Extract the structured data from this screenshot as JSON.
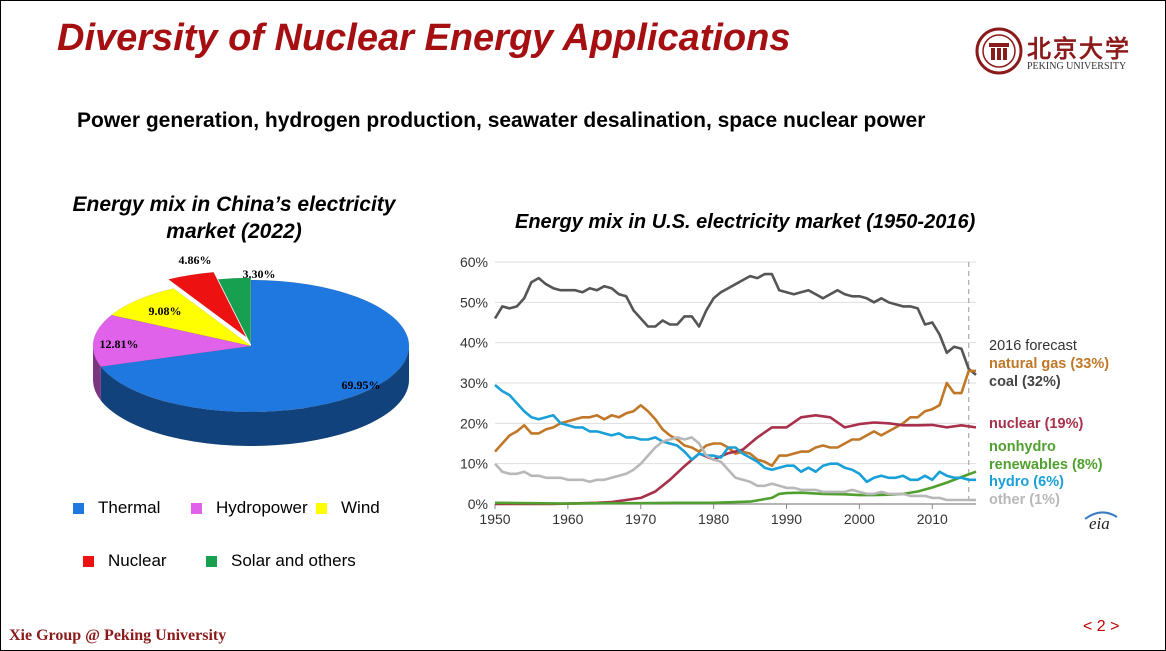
{
  "slide": {
    "title": "Diversity of Nuclear Energy Applications",
    "subtitle": "Power generation, hydrogen production, seawater desalination, space nuclear power",
    "logo_text": "北京大学",
    "logo_sub": "PEKING UNIVERSITY",
    "footer_left": "Xie Group @ Peking University",
    "page_number": "< 2 >"
  },
  "colors": {
    "title": "#a50f12",
    "thermal": "#1f78e0",
    "hydropower": "#e062ea",
    "wind": "#ffff00",
    "nuclear": "#ee1111",
    "solar": "#17a050",
    "coal": "#555555",
    "natural_gas": "#c07828",
    "nuclear_line": "#a8304a",
    "nonhydro": "#50a030",
    "hydro": "#1aa0d8",
    "other": "#b8b8b8"
  },
  "chart_data": [
    {
      "type": "pie",
      "title": "Energy mix in China’s electricity market (2022)",
      "labels": [
        "Thermal",
        "Hydropower",
        "Wind",
        "Nuclear",
        "Solar and others"
      ],
      "values": [
        69.95,
        12.81,
        9.08,
        4.86,
        3.3
      ],
      "value_labels": [
        "69.95%",
        "12.81%",
        "9.08%",
        "4.86%",
        "3.30%"
      ],
      "exploded": [
        "Nuclear"
      ],
      "style": "3d",
      "legend_placement": "bottom"
    },
    {
      "type": "line",
      "title": "Energy mix in U.S. electricity market (1950-2016)",
      "xlim": [
        1950,
        2016
      ],
      "ylim": [
        0,
        60
      ],
      "x_ticks": [
        "1950",
        "1960",
        "1970",
        "1980",
        "1990",
        "2000",
        "2010"
      ],
      "y_ticks": [
        "0%",
        "10%",
        "20%",
        "30%",
        "40%",
        "50%",
        "60%"
      ],
      "forecast_line_x": 2015,
      "forecast_label": "2016 forecast",
      "grid": "horizontal",
      "source_logo": "eia",
      "series": [
        {
          "name": "coal (32%)",
          "color_key": "coal",
          "x": [
            1950,
            1951,
            1952,
            1953,
            1954,
            1955,
            1956,
            1957,
            1958,
            1959,
            1960,
            1961,
            1962,
            1963,
            1964,
            1965,
            1966,
            1967,
            1968,
            1969,
            1970,
            1971,
            1972,
            1973,
            1974,
            1975,
            1976,
            1977,
            1978,
            1979,
            1980,
            1981,
            1982,
            1983,
            1984,
            1985,
            1986,
            1987,
            1988,
            1989,
            1990,
            1991,
            1992,
            1993,
            1994,
            1995,
            1996,
            1997,
            1998,
            1999,
            2000,
            2001,
            2002,
            2003,
            2004,
            2005,
            2006,
            2007,
            2008,
            2009,
            2010,
            2011,
            2012,
            2013,
            2014,
            2015,
            2016
          ],
          "values": [
            46,
            49,
            48.5,
            49,
            51,
            55,
            56,
            54.5,
            53.5,
            53,
            53,
            53,
            52.5,
            53.5,
            53,
            54,
            53.5,
            52,
            51.5,
            48,
            46,
            44,
            44,
            45.5,
            44.5,
            44.5,
            46.5,
            46.5,
            44,
            48,
            51,
            52.5,
            53.5,
            54.5,
            55.5,
            56.5,
            56,
            57,
            57,
            53,
            52.5,
            52,
            52.5,
            53,
            52,
            51,
            52,
            53,
            52,
            51.5,
            51.5,
            51,
            50,
            51,
            50,
            49.5,
            49,
            49,
            48.5,
            44.5,
            45,
            42,
            37.5,
            39,
            38.5,
            33.5,
            32
          ]
        },
        {
          "name": "natural gas (33%)",
          "color_key": "natural_gas",
          "x": [
            1950,
            1951,
            1952,
            1953,
            1954,
            1955,
            1956,
            1957,
            1958,
            1959,
            1960,
            1961,
            1962,
            1963,
            1964,
            1965,
            1966,
            1967,
            1968,
            1969,
            1970,
            1971,
            1972,
            1973,
            1974,
            1975,
            1976,
            1977,
            1978,
            1979,
            1980,
            1981,
            1982,
            1983,
            1984,
            1985,
            1986,
            1987,
            1988,
            1989,
            1990,
            1991,
            1992,
            1993,
            1994,
            1995,
            1996,
            1997,
            1998,
            1999,
            2000,
            2001,
            2002,
            2003,
            2004,
            2005,
            2006,
            2007,
            2008,
            2009,
            2010,
            2011,
            2012,
            2013,
            2014,
            2015,
            2016
          ],
          "values": [
            13,
            15,
            17,
            18,
            19.5,
            17.5,
            17.5,
            18.5,
            19,
            20,
            20.5,
            21,
            21.5,
            21.5,
            22,
            21,
            22,
            21.5,
            22.5,
            23,
            24.5,
            23,
            21,
            18.5,
            17,
            16,
            14.5,
            14,
            13,
            14.5,
            15,
            15,
            14,
            12.5,
            13,
            12.5,
            11,
            10.5,
            9.5,
            12,
            12,
            12.5,
            13,
            13,
            14,
            14.5,
            14,
            14,
            15,
            16,
            16,
            17,
            18,
            17,
            18,
            19,
            20,
            21.5,
            21.5,
            23,
            23.5,
            24.5,
            30,
            27.5,
            27.5,
            33,
            33
          ]
        },
        {
          "name": "nuclear (19%)",
          "color_key": "nuclear_line",
          "x": [
            1950,
            1956,
            1958,
            1960,
            1962,
            1964,
            1966,
            1968,
            1970,
            1972,
            1974,
            1976,
            1978,
            1980,
            1982,
            1984,
            1986,
            1988,
            1990,
            1992,
            1994,
            1996,
            1998,
            2000,
            2002,
            2004,
            2006,
            2008,
            2010,
            2012,
            2014,
            2016
          ],
          "values": [
            0,
            0,
            0,
            0.1,
            0.2,
            0.3,
            0.5,
            1,
            1.5,
            3.1,
            6,
            9.4,
            12.5,
            11,
            12.6,
            13.5,
            16.5,
            19,
            19,
            21.5,
            22,
            21.5,
            19,
            19.8,
            20.2,
            20,
            19.5,
            19.5,
            19.6,
            19,
            19.5,
            19
          ]
        },
        {
          "name": "nonhydro renewables (8%)",
          "color_key": "nonhydro",
          "x": [
            1950,
            1955,
            1960,
            1965,
            1970,
            1975,
            1980,
            1985,
            1988,
            1989,
            1990,
            1992,
            1995,
            1998,
            2000,
            2002,
            2004,
            2006,
            2008,
            2010,
            2012,
            2014,
            2016
          ],
          "values": [
            0.3,
            0.2,
            0.1,
            0.2,
            0.2,
            0.3,
            0.3,
            0.6,
            1.5,
            2.5,
            2.7,
            2.8,
            2.5,
            2.4,
            2.2,
            2.2,
            2.3,
            2.5,
            3.1,
            4.1,
            5.3,
            6.7,
            8
          ]
        },
        {
          "name": "hydro (6%)",
          "color_key": "hydro",
          "x": [
            1950,
            1951,
            1952,
            1953,
            1954,
            1955,
            1956,
            1957,
            1958,
            1959,
            1960,
            1961,
            1962,
            1963,
            1964,
            1965,
            1966,
            1967,
            1968,
            1969,
            1970,
            1971,
            1972,
            1973,
            1974,
            1975,
            1976,
            1977,
            1978,
            1979,
            1980,
            1981,
            1982,
            1983,
            1984,
            1985,
            1986,
            1987,
            1988,
            1989,
            1990,
            1991,
            1992,
            1993,
            1994,
            1995,
            1996,
            1997,
            1998,
            1999,
            2000,
            2001,
            2002,
            2003,
            2004,
            2005,
            2006,
            2007,
            2008,
            2009,
            2010,
            2011,
            2012,
            2013,
            2014,
            2015,
            2016
          ],
          "values": [
            29.5,
            28,
            27,
            25,
            23,
            21.5,
            21,
            21.5,
            22,
            20,
            19.5,
            19,
            19,
            18,
            18,
            17.5,
            17,
            17.5,
            16.5,
            16.5,
            16,
            16,
            16.5,
            15.5,
            15,
            14.5,
            13,
            11,
            12.5,
            12,
            12,
            11.5,
            14,
            14,
            12.5,
            11.5,
            10.5,
            9,
            8.5,
            9,
            9.5,
            9.5,
            8,
            9,
            8,
            9.5,
            10,
            10,
            9,
            8.5,
            7.5,
            5.5,
            6.5,
            7,
            6.5,
            6.5,
            7,
            6,
            6,
            7,
            6,
            8,
            7,
            6.5,
            6.5,
            6,
            6
          ]
        },
        {
          "name": "other (1%)",
          "color_key": "other",
          "x": [
            1950,
            1951,
            1952,
            1953,
            1954,
            1955,
            1956,
            1957,
            1958,
            1959,
            1960,
            1961,
            1962,
            1963,
            1964,
            1965,
            1966,
            1967,
            1968,
            1969,
            1970,
            1971,
            1972,
            1973,
            1974,
            1975,
            1976,
            1977,
            1978,
            1979,
            1980,
            1981,
            1982,
            1983,
            1984,
            1985,
            1986,
            1987,
            1988,
            1989,
            1990,
            1991,
            1992,
            1993,
            1994,
            1995,
            1996,
            1997,
            1998,
            1999,
            2000,
            2001,
            2002,
            2003,
            2004,
            2005,
            2006,
            2007,
            2008,
            2009,
            2010,
            2011,
            2012,
            2013,
            2014,
            2015,
            2016
          ],
          "values": [
            10,
            8,
            7.5,
            7.5,
            8,
            7,
            7,
            6.5,
            6.5,
            6.5,
            6,
            6,
            6,
            5.5,
            6,
            6,
            6.5,
            7,
            7.5,
            8.5,
            10,
            12,
            14,
            15.5,
            16,
            16.5,
            16,
            16.5,
            15,
            12,
            11,
            10.5,
            8.5,
            6.5,
            6,
            5.5,
            4.5,
            4.5,
            5,
            4.5,
            4,
            4,
            3.5,
            3.5,
            3.5,
            3,
            3,
            3,
            3,
            3.5,
            3,
            2.5,
            2.5,
            3,
            2.5,
            2.5,
            2.5,
            2,
            2,
            2,
            1.5,
            1.5,
            1,
            1,
            1,
            1,
            1
          ]
        }
      ]
    }
  ]
}
